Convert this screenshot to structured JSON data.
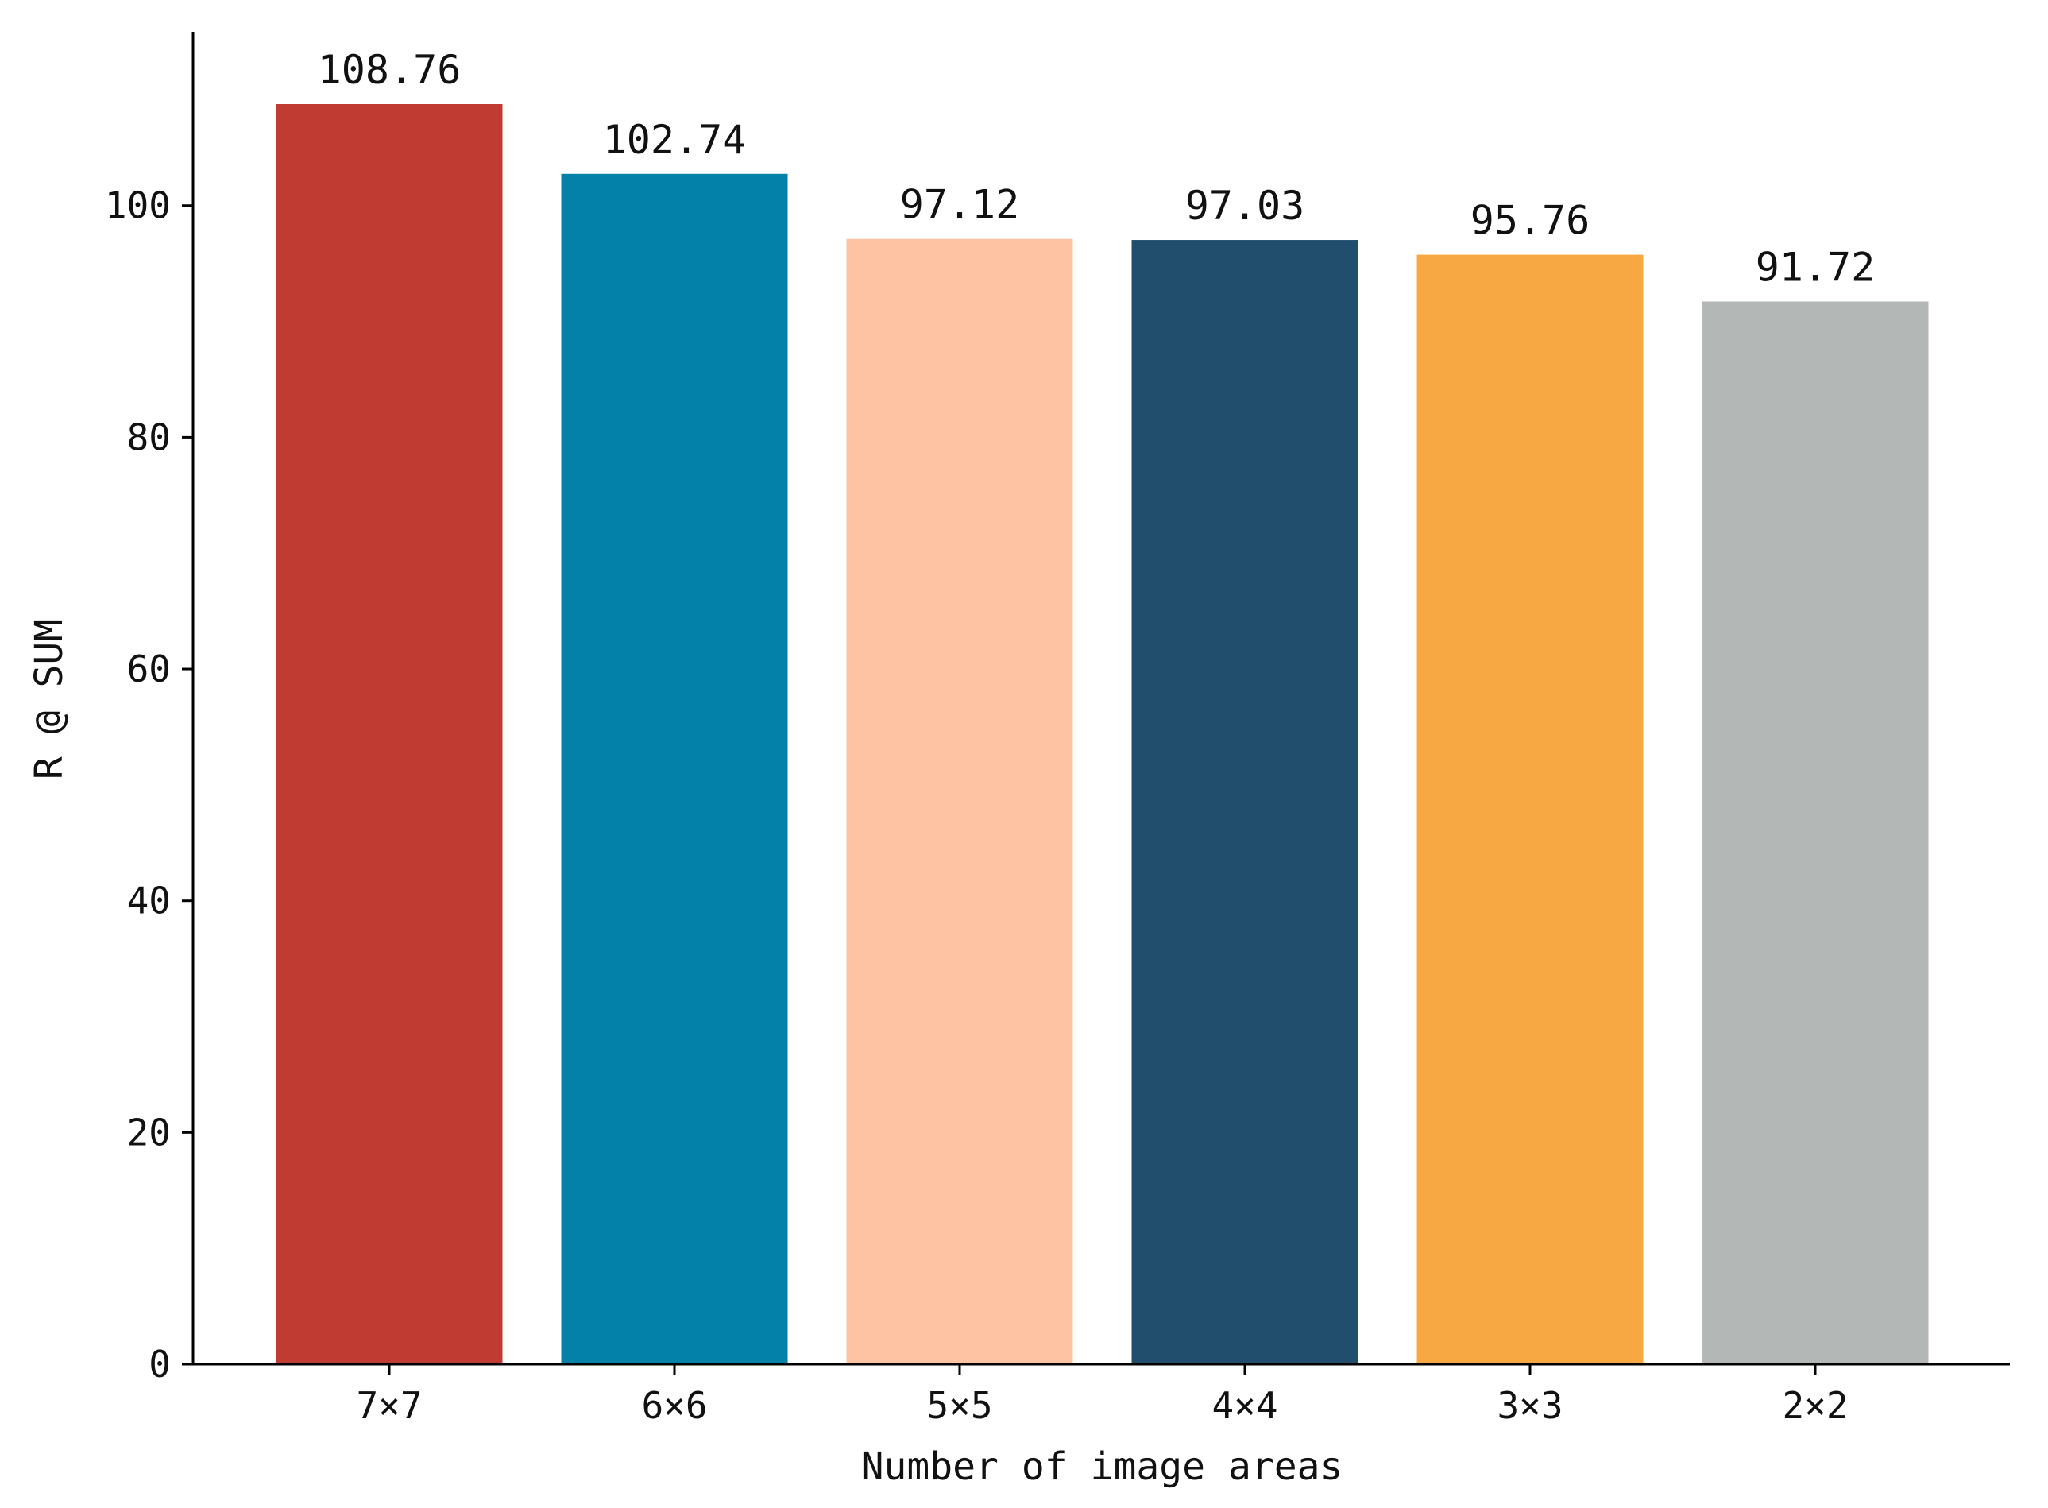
{
  "chart_data": {
    "type": "bar",
    "categories": [
      "7×7",
      "6×6",
      "5×5",
      "4×4",
      "3×3",
      "2×2"
    ],
    "values": [
      108.76,
      102.74,
      97.12,
      97.03,
      95.76,
      91.72
    ],
    "value_labels": [
      "108.76",
      "102.74",
      "97.12",
      "97.03",
      "95.76",
      "91.72"
    ],
    "colors": [
      "#c03c33",
      "#0381a9",
      "#fec3a2",
      "#204e6c",
      "#f7a843",
      "#b3b7b6"
    ],
    "xlabel": "Number of image areas",
    "ylabel": "R @ SUM",
    "ylim": [
      0,
      115
    ],
    "yticks": [
      0,
      20,
      40,
      60,
      80,
      100
    ],
    "grid": false,
    "legend": "none"
  }
}
